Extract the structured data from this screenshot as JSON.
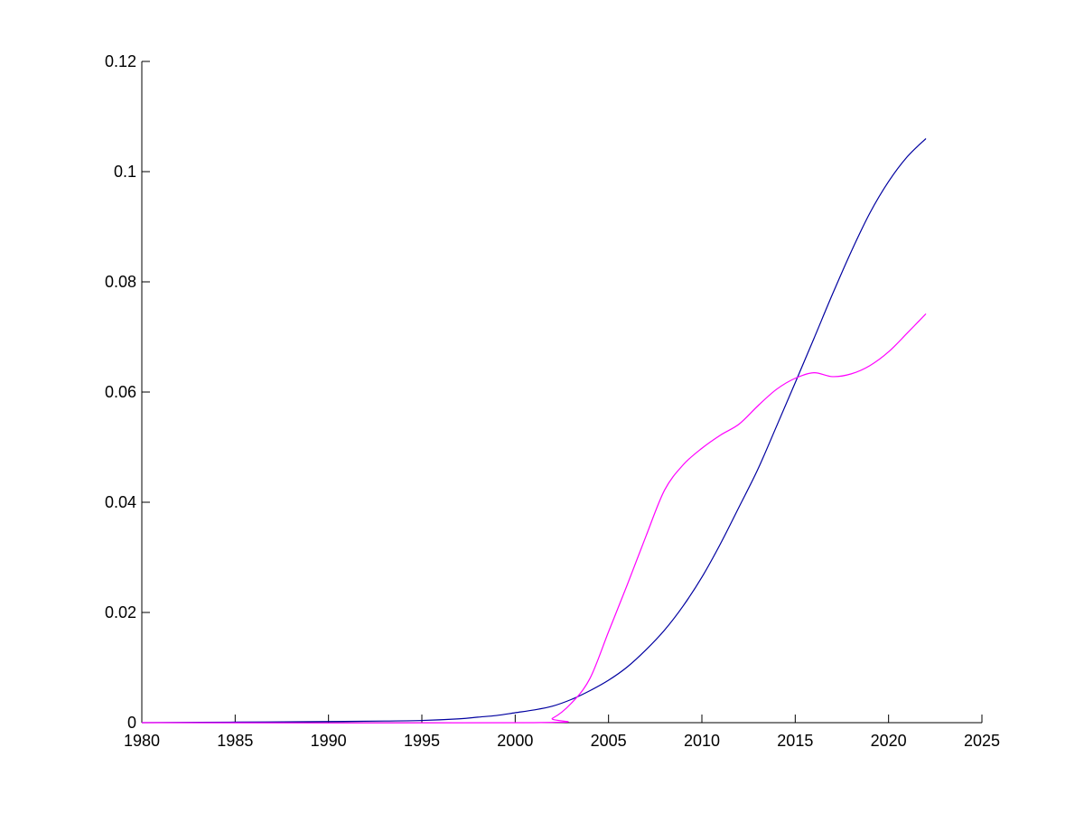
{
  "chart_data": {
    "type": "line",
    "title": "",
    "xlabel": "",
    "ylabel": "",
    "xlim": [
      1980,
      2025
    ],
    "ylim": [
      0,
      0.12
    ],
    "x_ticks": [
      1980,
      1985,
      1990,
      1995,
      2000,
      2005,
      2010,
      2015,
      2020,
      2025
    ],
    "x_tick_labels": [
      "1980",
      "1985",
      "1990",
      "1995",
      "2000",
      "2005",
      "2010",
      "2015",
      "2020",
      "2025"
    ],
    "y_ticks": [
      0,
      0.02,
      0.04,
      0.06,
      0.08,
      0.1,
      0.12
    ],
    "y_tick_labels": [
      "0",
      "0.02",
      "0.04",
      "0.06",
      "0.08",
      "0.1",
      "0.12"
    ],
    "grid": false,
    "legend": "none",
    "series": [
      {
        "color": "#0000a0",
        "x": [
          1980,
          1985,
          1990,
          1993,
          1995,
          1997,
          1998,
          1999,
          2000,
          2001,
          2002,
          2003,
          2004,
          2005,
          2006,
          2007,
          2008,
          2009,
          2010,
          2011,
          2012,
          2013,
          2014,
          2015,
          2016,
          2017,
          2018,
          2019,
          2020,
          2021,
          2022
        ],
        "y": [
          0,
          0.0001,
          0.0002,
          0.0003,
          0.0004,
          0.0007,
          0.001,
          0.0013,
          0.0018,
          0.0023,
          0.003,
          0.0042,
          0.0058,
          0.0077,
          0.0101,
          0.0132,
          0.0168,
          0.0212,
          0.0264,
          0.0325,
          0.0392,
          0.046,
          0.0538,
          0.0617,
          0.0697,
          0.0778,
          0.0855,
          0.0925,
          0.0982,
          0.1027,
          0.106
        ]
      },
      {
        "color": "#ff00ff",
        "x": [
          1980,
          2001,
          2002,
          2003,
          2004,
          2005,
          2006,
          2007,
          2008,
          2009,
          2010,
          2011,
          2012,
          2013,
          2014,
          2015,
          2016,
          2017,
          2018,
          2019,
          2020,
          2021,
          2022
        ],
        "y": [
          0,
          0,
          0.0008,
          0.0035,
          0.008,
          0.0165,
          0.025,
          0.0338,
          0.0422,
          0.0468,
          0.0498,
          0.0522,
          0.0542,
          0.0575,
          0.0605,
          0.0625,
          0.0635,
          0.0628,
          0.0633,
          0.0648,
          0.0673,
          0.0707,
          0.0742
        ]
      }
    ]
  }
}
